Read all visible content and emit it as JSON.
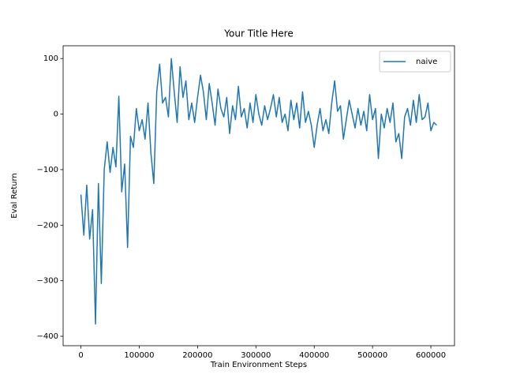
{
  "chart_data": {
    "type": "line",
    "title": "Your Title Here",
    "x_label": "Train Environment Steps",
    "y_label": "Eval Return",
    "x": [
      0,
      5000,
      10000,
      15000,
      20000,
      25000,
      30000,
      35000,
      40000,
      45000,
      50000,
      55000,
      60000,
      65000,
      70000,
      75000,
      80000,
      85000,
      90000,
      95000,
      100000,
      105000,
      110000,
      115000,
      120000,
      125000,
      130000,
      135000,
      140000,
      145000,
      150000,
      155000,
      160000,
      165000,
      170000,
      175000,
      180000,
      185000,
      190000,
      195000,
      200000,
      205000,
      210000,
      215000,
      220000,
      225000,
      230000,
      235000,
      240000,
      245000,
      250000,
      255000,
      260000,
      265000,
      270000,
      275000,
      280000,
      285000,
      290000,
      295000,
      300000,
      305000,
      310000,
      315000,
      320000,
      325000,
      330000,
      335000,
      340000,
      345000,
      350000,
      355000,
      360000,
      365000,
      370000,
      375000,
      380000,
      385000,
      390000,
      395000,
      400000,
      405000,
      410000,
      415000,
      420000,
      425000,
      430000,
      435000,
      440000,
      445000,
      450000,
      455000,
      460000,
      465000,
      470000,
      475000,
      480000,
      485000,
      490000,
      495000,
      500000,
      505000,
      510000,
      515000,
      520000,
      525000,
      530000,
      535000,
      540000,
      545000,
      550000,
      555000,
      560000,
      565000,
      570000,
      575000,
      580000,
      585000,
      590000,
      595000,
      600000,
      605000,
      610000
    ],
    "series": [
      {
        "name": "naive",
        "color": "#1f77b4",
        "values": [
          -145,
          -218,
          -128,
          -225,
          -172,
          -378,
          -125,
          -305,
          -100,
          -50,
          -105,
          -60,
          -95,
          32,
          -140,
          -90,
          -240,
          -40,
          -60,
          10,
          -30,
          -10,
          -45,
          20,
          -70,
          -125,
          40,
          90,
          20,
          30,
          -5,
          100,
          40,
          -15,
          85,
          30,
          60,
          -10,
          20,
          -15,
          30,
          70,
          40,
          -10,
          55,
          20,
          -20,
          45,
          10,
          -5,
          30,
          -35,
          15,
          -10,
          50,
          -5,
          10,
          -25,
          20,
          -15,
          35,
          0,
          -20,
          15,
          -10,
          10,
          35,
          -5,
          30,
          -15,
          0,
          -30,
          25,
          -10,
          20,
          -25,
          40,
          -15,
          5,
          -20,
          -60,
          -20,
          10,
          -30,
          -10,
          -35,
          20,
          60,
          5,
          15,
          -45,
          -10,
          25,
          0,
          -25,
          10,
          -20,
          5,
          -30,
          35,
          -10,
          10,
          -80,
          0,
          -25,
          10,
          -15,
          20,
          -50,
          -35,
          -80,
          -5,
          10,
          -20,
          25,
          -15,
          35,
          -10,
          -5,
          20,
          -30,
          -15,
          -20
        ]
      }
    ],
    "xlim": [
      -30500,
      640500
    ],
    "ylim": [
      -417,
      123
    ],
    "xticks": [
      0,
      100000,
      200000,
      300000,
      400000,
      500000,
      600000
    ],
    "yticks": [
      {
        "value": -400,
        "label": "−400"
      },
      {
        "value": -300,
        "label": "−300"
      },
      {
        "value": -200,
        "label": "−200"
      },
      {
        "value": -100,
        "label": "−100"
      },
      0,
      100
    ],
    "legend": "upper right"
  }
}
